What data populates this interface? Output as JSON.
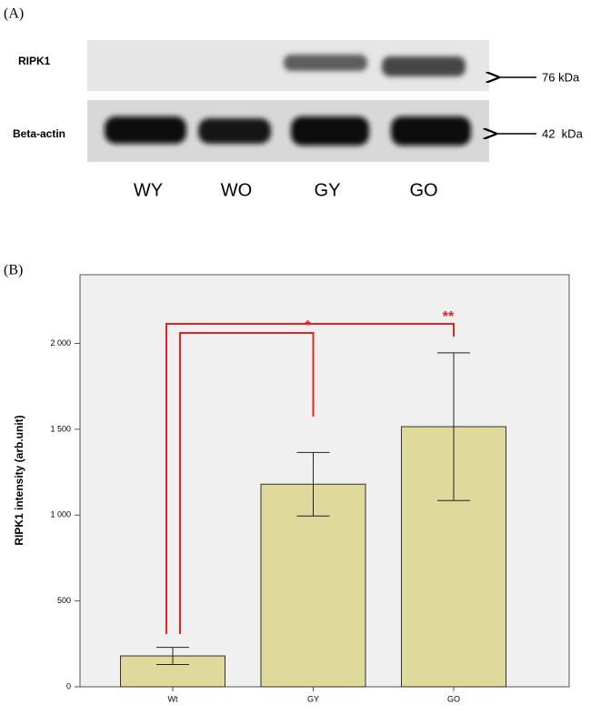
{
  "panel_a": {
    "label": "(A)",
    "rows": [
      {
        "name": "RIPK1",
        "size": "76 kDa"
      },
      {
        "name": "Beta-actin",
        "size": "42  kDa"
      }
    ],
    "lanes": [
      "WY",
      "WO",
      "GY",
      "GO"
    ]
  },
  "chart_data": {
    "type": "bar",
    "panel_label": "(B)",
    "y_label": "RIPK1 intensity (arb.unit)",
    "categories": [
      "Wt",
      "GY",
      "GO"
    ],
    "values": [
      180,
      1180,
      1515
    ],
    "errors": [
      50,
      185,
      430
    ],
    "color": "#dfd99b",
    "ylim": [
      0,
      2400
    ],
    "yticks": [
      0,
      500,
      {
        "value": 1000,
        "label": "1 000"
      },
      {
        "value": 1500,
        "label": "1 500"
      },
      {
        "value": 2000,
        "label": "2 000"
      }
    ],
    "significance": [
      {
        "from": 0,
        "to": 2,
        "label": "**"
      },
      {
        "from": 0,
        "to": 1,
        "label": "*"
      }
    ]
  }
}
